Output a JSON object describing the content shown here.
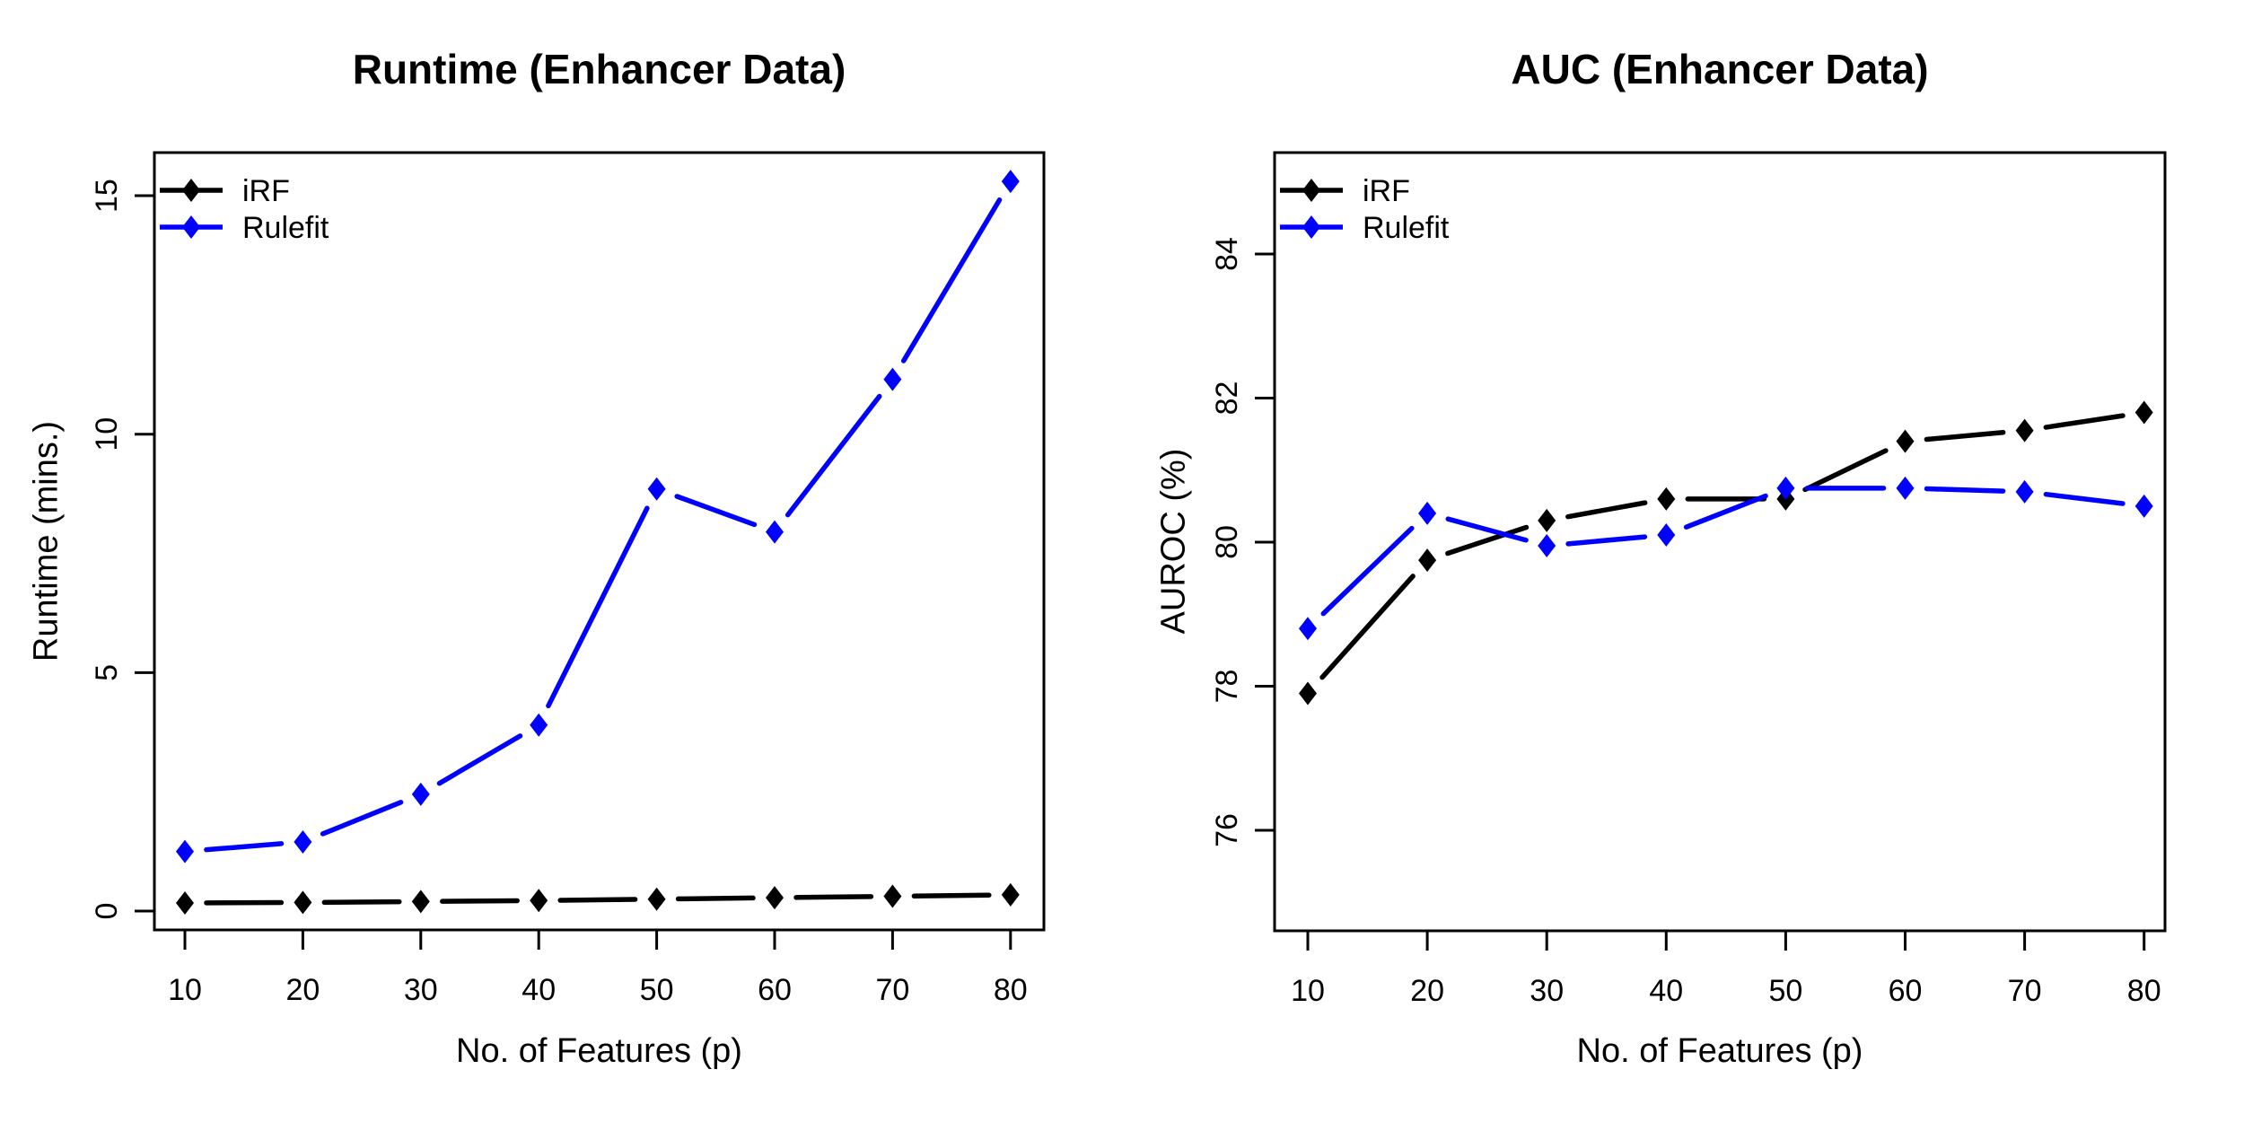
{
  "page_background": "#ffffff",
  "colors": {
    "iRF": "#000000",
    "Rulefit": "#0000ff",
    "axis": "#000000",
    "background": "#ffffff"
  },
  "chart_data": [
    {
      "type": "line",
      "title": "Runtime (Enhancer Data)",
      "xlabel": "No. of Features (p)",
      "ylabel": "Runtime (mins.)",
      "x": [
        10,
        20,
        30,
        40,
        50,
        60,
        70,
        80
      ],
      "x_ticks": [
        10,
        20,
        30,
        40,
        50,
        60,
        70,
        80
      ],
      "y_ticks": [
        0,
        5,
        10,
        15
      ],
      "xlim": [
        7.8,
        82.9
      ],
      "ylim": [
        -0.4,
        15.9
      ],
      "grid": false,
      "legend_position": "top-left",
      "marker": "filled-diamond",
      "line_style": "solid-with-point-gaps",
      "legend": [
        "iRF",
        "Rulefit"
      ],
      "series": [
        {
          "name": "iRF",
          "color": "#000000",
          "values": [
            0.17,
            0.18,
            0.2,
            0.22,
            0.25,
            0.28,
            0.31,
            0.34
          ]
        },
        {
          "name": "Rulefit",
          "color": "#0000ff",
          "values": [
            1.25,
            1.45,
            2.45,
            3.9,
            8.85,
            7.95,
            11.15,
            15.3
          ]
        }
      ]
    },
    {
      "type": "line",
      "title": "AUC (Enhancer Data)",
      "xlabel": "No. of Features (p)",
      "ylabel": "AUROC (%)",
      "x": [
        10,
        20,
        30,
        40,
        50,
        60,
        70,
        80
      ],
      "x_ticks": [
        10,
        20,
        30,
        40,
        50,
        60,
        70,
        80
      ],
      "y_ticks": [
        76,
        78,
        80,
        82,
        84
      ],
      "xlim": [
        7.2,
        81.8
      ],
      "ylim": [
        74.6,
        85.4
      ],
      "grid": false,
      "legend_position": "top-left",
      "marker": "filled-diamond",
      "line_style": "solid-with-point-gaps",
      "legend": [
        "iRF",
        "Rulefit"
      ],
      "series": [
        {
          "name": "iRF",
          "color": "#000000",
          "values": [
            77.9,
            79.75,
            80.3,
            80.6,
            80.6,
            81.4,
            81.55,
            81.8
          ]
        },
        {
          "name": "Rulefit",
          "color": "#0000ff",
          "values": [
            78.8,
            80.4,
            79.95,
            80.1,
            80.75,
            80.75,
            80.7,
            80.5
          ]
        }
      ]
    }
  ]
}
